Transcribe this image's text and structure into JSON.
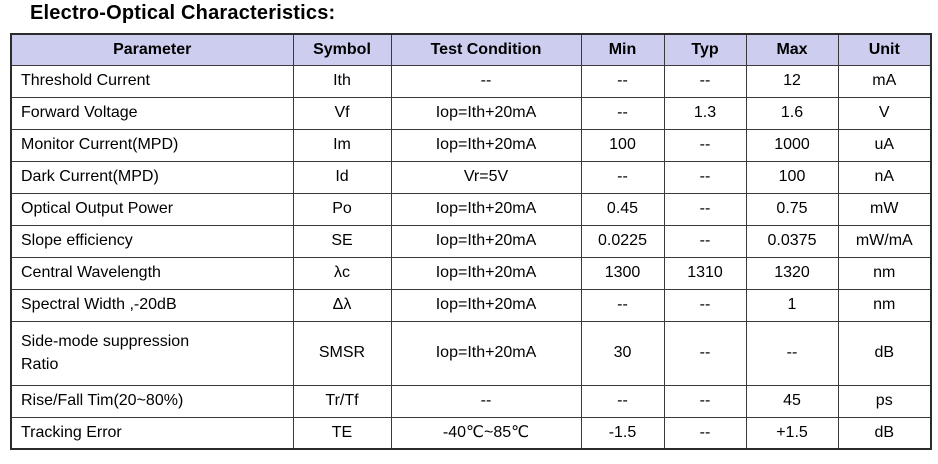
{
  "title": "Electro-Optical Characteristics:",
  "colors": {
    "header_bg": "#cdcdf0",
    "border": "#3a3a3a",
    "text": "#000000",
    "page_bg": "#ffffff"
  },
  "table": {
    "headers": {
      "parameter": "Parameter",
      "symbol": "Symbol",
      "condition": "Test Condition",
      "min": "Min",
      "typ": "Typ",
      "max": "Max",
      "unit": "Unit"
    },
    "rows": [
      {
        "parameter": "Threshold Current",
        "symbol": "Ith",
        "condition": "--",
        "min": "--",
        "typ": "--",
        "max": "12",
        "unit": "mA",
        "tall": false
      },
      {
        "parameter": "Forward Voltage",
        "symbol": "Vf",
        "condition": "Iop=Ith+20mA",
        "min": "--",
        "typ": "1.3",
        "max": "1.6",
        "unit": "V",
        "tall": false
      },
      {
        "parameter": "Monitor Current(MPD)",
        "symbol": "Im",
        "condition": "Iop=Ith+20mA",
        "min": "100",
        "typ": "--",
        "max": "1000",
        "unit": "uA",
        "tall": false
      },
      {
        "parameter": "Dark Current(MPD)",
        "symbol": "Id",
        "condition": "Vr=5V",
        "min": "--",
        "typ": "--",
        "max": "100",
        "unit": "nA",
        "tall": false
      },
      {
        "parameter": "Optical Output Power",
        "symbol": "Po",
        "condition": "Iop=Ith+20mA",
        "min": "0.45",
        "typ": "--",
        "max": "0.75",
        "unit": "mW",
        "tall": false
      },
      {
        "parameter": "Slope efficiency",
        "symbol": "SE",
        "condition": "Iop=Ith+20mA",
        "min": "0.0225",
        "typ": "--",
        "max": "0.0375",
        "unit": "mW/mA",
        "tall": false
      },
      {
        "parameter": "Central Wavelength",
        "symbol": "λc",
        "condition": "Iop=Ith+20mA",
        "min": "1300",
        "typ": "1310",
        "max": "1320",
        "unit": "nm",
        "tall": false
      },
      {
        "parameter": "Spectral Width ,-20dB",
        "symbol": "Δλ",
        "condition": "Iop=Ith+20mA",
        "min": "--",
        "typ": "--",
        "max": "1",
        "unit": "nm",
        "tall": false
      },
      {
        "parameter": "Side-mode suppression\nRatio",
        "symbol": "SMSR",
        "condition": "Iop=Ith+20mA",
        "min": "30",
        "typ": "--",
        "max": "--",
        "unit": "dB",
        "tall": true
      },
      {
        "parameter": "Rise/Fall Tim(20~80%)",
        "symbol": "Tr/Tf",
        "condition": "--",
        "min": "--",
        "typ": "--",
        "max": "45",
        "unit": "ps",
        "tall": false
      },
      {
        "parameter": "Tracking Error",
        "symbol": "TE",
        "condition": "-40℃~85℃",
        "min": "-1.5",
        "typ": "--",
        "max": "+1.5",
        "unit": "dB",
        "tall": false
      }
    ]
  }
}
